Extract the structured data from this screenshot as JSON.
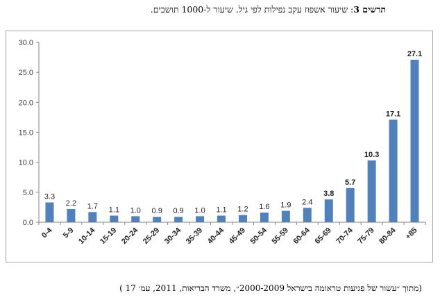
{
  "caption_top": {
    "label": "תרשים 3",
    "separator": ": ",
    "text": "שיעור אשפוז עקב נפילות לפי גיל.  שיעור ל-1000 תושבים."
  },
  "caption_bottom": "(מתוך ״עשור של פגיעות טראומה בישראל 2000-2009״, משרד הבריאות, 2011,  עמ׳ 17 )",
  "chart_data": {
    "type": "bar",
    "categories": [
      "0-4",
      "5-9",
      "10-14",
      "15-19",
      "20-24",
      "25-29",
      "30-34",
      "35-39",
      "40-44",
      "45-49",
      "50-54",
      "55-59",
      "60-64",
      "65-69",
      "70-74",
      "75-79",
      "80-84",
      "+85"
    ],
    "values": [
      3.3,
      2.2,
      1.7,
      1.1,
      1.0,
      0.9,
      0.9,
      1.0,
      1.1,
      1.2,
      1.6,
      1.9,
      2.4,
      3.8,
      5.7,
      10.3,
      17.1,
      27.1
    ],
    "labels": [
      "3.3",
      "2.2",
      "1.7",
      "1.1",
      "1.0",
      "0.9",
      "0.9",
      "1.0",
      "1.1",
      "1.2",
      "1.6",
      "1.9",
      "2.4",
      "3.8",
      "5.7",
      "10.3",
      "17.1",
      "27.1"
    ],
    "bold_labels": [
      false,
      false,
      false,
      false,
      false,
      false,
      false,
      false,
      false,
      false,
      false,
      false,
      false,
      true,
      true,
      true,
      true,
      true
    ],
    "yticks": [
      "0.0",
      "5.0",
      "10.0",
      "15.0",
      "20.0",
      "25.0",
      "30.0"
    ],
    "ylim": [
      0,
      30
    ],
    "grid": false,
    "bar_color": "#4f81bd"
  }
}
